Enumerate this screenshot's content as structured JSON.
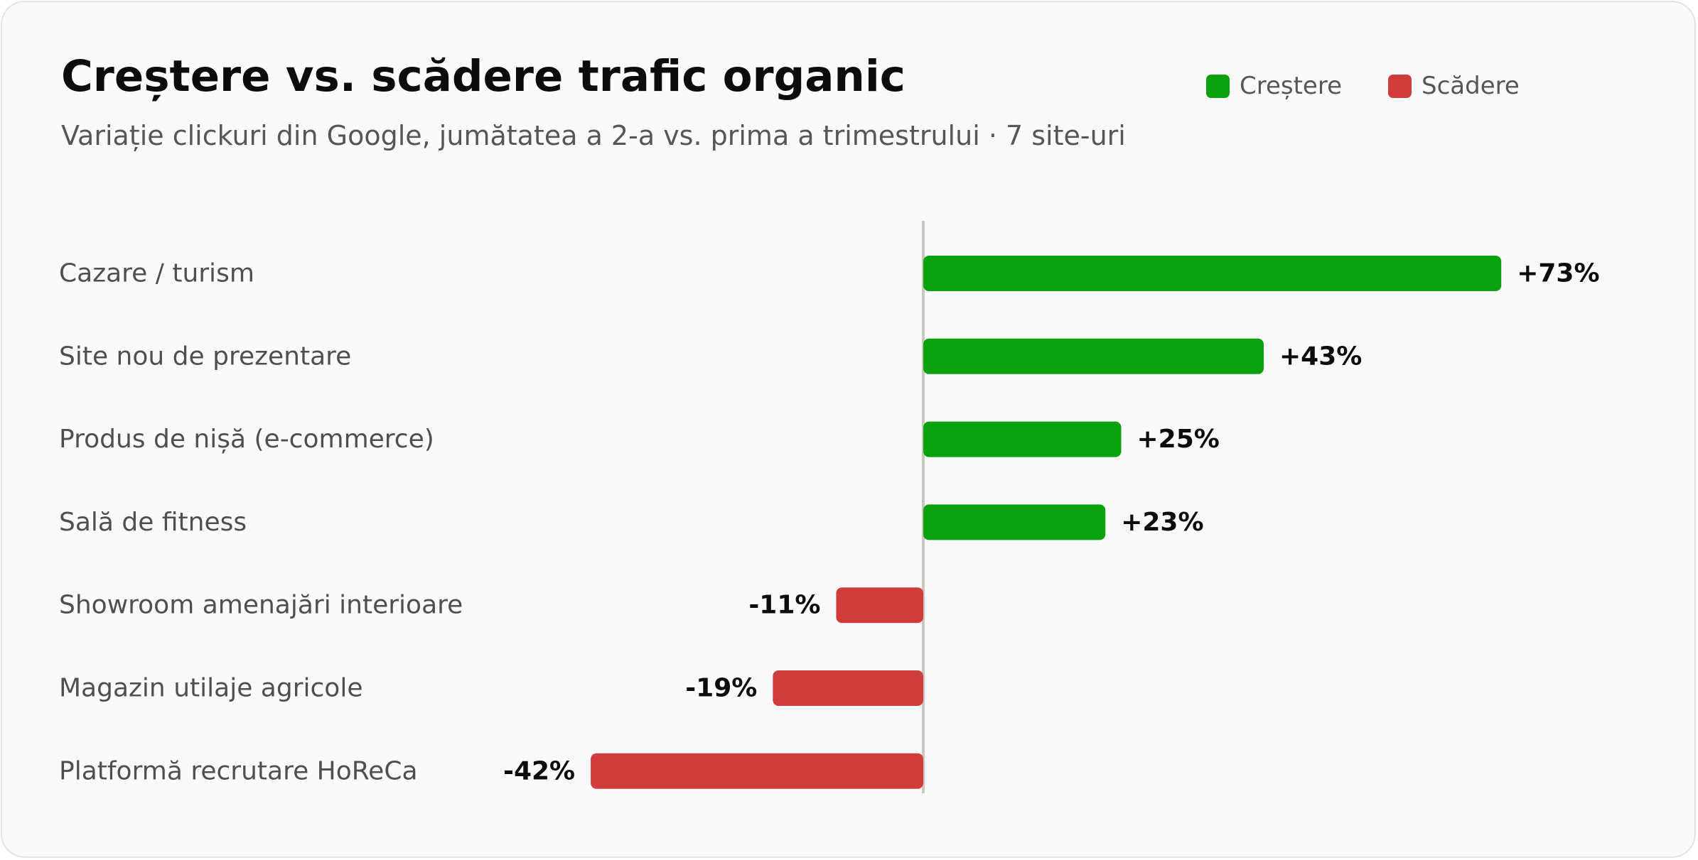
{
  "colors": {
    "increase": "#0aa10e",
    "decrease": "#d03b3b",
    "zero_line": "#c8c8c0"
  },
  "legend": {
    "increase_label": "Creștere",
    "decrease_label": "Scădere"
  },
  "chart_data": {
    "type": "bar",
    "orientation": "horizontal",
    "title": "Creștere vs. scădere trafic organic",
    "subtitle": "Variație clickuri din Google, jumătatea a 2-a vs. prima a trimestrului · 7 site-uri",
    "categories": [
      "Cazare / turism",
      "Site nou de prezentare",
      "Produs de nișă (e-commerce)",
      "Sală de fitness",
      "Showroom amenajări interioare",
      "Magazin utilaje agricole",
      "Platformă recrutare HoReCa"
    ],
    "values": [
      73,
      43,
      25,
      23,
      -11,
      -19,
      -42
    ],
    "value_labels": [
      "+73%",
      "+43%",
      "+25%",
      "+23%",
      "-11%",
      "-19%",
      "-42%"
    ],
    "unit": "%",
    "xlim": [
      -42,
      73
    ],
    "legend_position": "top-right",
    "grid": false
  }
}
